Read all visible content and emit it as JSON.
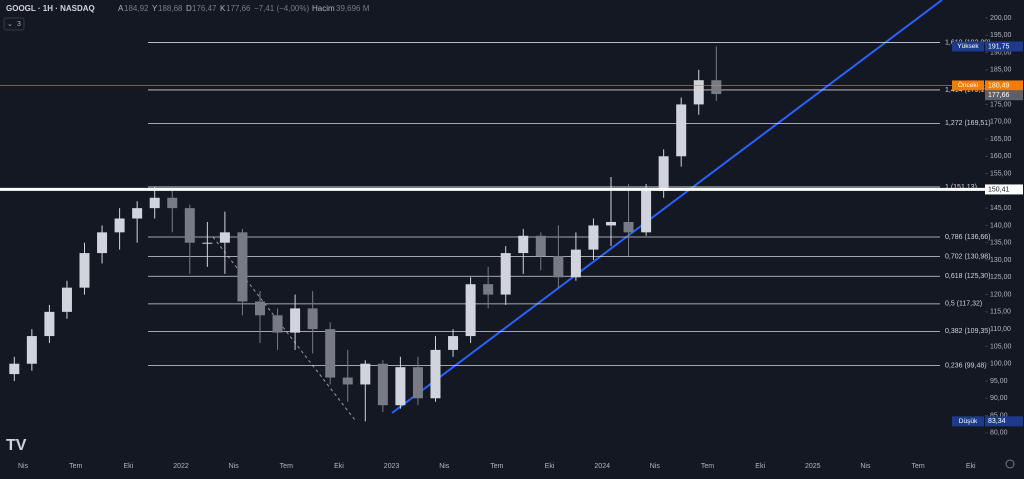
{
  "chart_data": {
    "type": "candlestick",
    "title": "GOOGL · 1H · NASDAQ",
    "ohlc_info": [
      {
        "key": "A",
        "text": "184,92"
      },
      {
        "key": "Y",
        "text": "188,68"
      },
      {
        "key": "D",
        "text": "176,47"
      },
      {
        "key": "K",
        "text": "177,66"
      }
    ],
    "change_text": "−7,41 (−4,00%)",
    "volume_key": "Hacim",
    "volume_text": "39,696 M",
    "indicator_count": "3",
    "x": [
      "2021-03",
      "2021-04",
      "2021-05",
      "2021-06",
      "2021-07",
      "2021-08",
      "2021-09",
      "2021-10",
      "2021-11",
      "2021-12",
      "2022-01",
      "2022-02",
      "2022-03",
      "2022-04",
      "2022-05",
      "2022-06",
      "2022-07",
      "2022-08",
      "2022-09",
      "2022-10",
      "2022-11",
      "2022-12",
      "2023-01",
      "2023-02",
      "2023-03",
      "2023-04",
      "2023-05",
      "2023-06",
      "2023-07",
      "2023-08",
      "2023-09",
      "2023-10",
      "2023-11",
      "2023-12",
      "2024-01",
      "2024-02",
      "2024-03",
      "2024-04",
      "2024-05",
      "2024-06",
      "2024-07"
    ],
    "open": [
      97,
      100,
      108,
      115,
      122,
      132,
      138,
      142,
      145,
      148,
      145,
      135,
      135,
      138,
      118,
      114,
      109,
      116,
      110,
      96,
      94,
      100,
      88,
      99,
      90,
      104,
      108,
      123,
      120,
      132,
      137,
      131,
      125,
      133,
      140,
      141,
      138,
      150,
      160,
      175,
      182
    ],
    "high": [
      102,
      110,
      117,
      124,
      135,
      140,
      145,
      147,
      151.13,
      150,
      146,
      141,
      144,
      139,
      121,
      116,
      120,
      121,
      112,
      104,
      101,
      101,
      102,
      102,
      108,
      110,
      125,
      128,
      134,
      139,
      138,
      140,
      138,
      142,
      154,
      152,
      152,
      162,
      177,
      185,
      191.75
    ],
    "low": [
      95,
      98,
      106,
      113,
      120,
      129,
      133,
      135,
      142,
      138,
      126,
      128,
      126,
      114,
      106,
      104,
      104,
      103,
      94,
      89,
      83.34,
      86,
      87,
      88,
      89,
      102,
      106,
      116,
      117,
      126,
      127,
      122,
      124,
      130,
      134,
      131,
      137,
      148,
      157,
      172,
      176
    ],
    "close": [
      100,
      108,
      115,
      122,
      132,
      138,
      142,
      145,
      148,
      145,
      135,
      135,
      138,
      118,
      114,
      109,
      116,
      110,
      96,
      94,
      100,
      88,
      99,
      90,
      104,
      108,
      123,
      120,
      132,
      137,
      131,
      125,
      133,
      140,
      141,
      138,
      150,
      160,
      175,
      182,
      178
    ],
    "up_color": "#d1d4dc",
    "down_color": "#787b86",
    "ylim": [
      73.6,
      205.2
    ],
    "yticks": [
      {
        "value": 80,
        "label": "80,00"
      },
      {
        "value": 85,
        "label": "85,00"
      },
      {
        "value": 90,
        "label": "90,00"
      },
      {
        "value": 95,
        "label": "95,00"
      },
      {
        "value": 100,
        "label": "100,00"
      },
      {
        "value": 105,
        "label": "105,00"
      },
      {
        "value": 110,
        "label": "110,00"
      },
      {
        "value": 115,
        "label": "115,00"
      },
      {
        "value": 120,
        "label": "120,00"
      },
      {
        "value": 125,
        "label": "125,00"
      },
      {
        "value": 130,
        "label": "130,00"
      },
      {
        "value": 135,
        "label": "135,00"
      },
      {
        "value": 140,
        "label": "140,00"
      },
      {
        "value": 145,
        "label": "145,00"
      },
      {
        "value": 150,
        "label": "150,00"
      },
      {
        "value": 155,
        "label": "155,00"
      },
      {
        "value": 160,
        "label": "160,00"
      },
      {
        "value": 165,
        "label": "165,00"
      },
      {
        "value": 170,
        "label": "170,00"
      },
      {
        "value": 175,
        "label": "175,00"
      },
      {
        "value": 180,
        "label": "180,00"
      },
      {
        "value": 185,
        "label": "185,00"
      },
      {
        "value": 190,
        "label": "190,00"
      },
      {
        "value": 195,
        "label": "195,00"
      },
      {
        "value": 200,
        "label": "200,00"
      }
    ],
    "xticks": [
      {
        "value": "2021-04",
        "label": "Nis"
      },
      {
        "value": "2021-07",
        "label": "Tem"
      },
      {
        "value": "2021-10",
        "label": "Eki"
      },
      {
        "value": "2022-01",
        "label": "2022"
      },
      {
        "value": "2022-04",
        "label": "Nis"
      },
      {
        "value": "2022-07",
        "label": "Tem"
      },
      {
        "value": "2022-10",
        "label": "Eki"
      },
      {
        "value": "2023-01",
        "label": "2023"
      },
      {
        "value": "2023-04",
        "label": "Nis"
      },
      {
        "value": "2023-07",
        "label": "Tem"
      },
      {
        "value": "2023-10",
        "label": "Eki"
      },
      {
        "value": "2024-01",
        "label": "2024"
      },
      {
        "value": "2024-04",
        "label": "Nis"
      },
      {
        "value": "2024-07",
        "label": "Tem"
      },
      {
        "value": "2024-10",
        "label": "Eki"
      },
      {
        "value": "2025-01",
        "label": "2025"
      },
      {
        "value": "2025-04",
        "label": "Nis"
      },
      {
        "value": "2025-07",
        "label": "Tem"
      },
      {
        "value": "2025-10",
        "label": "Eki"
      }
    ],
    "fib_levels": [
      {
        "label": "1,618 (192,89)",
        "value": 192.89
      },
      {
        "label": "1,414 (179,19)",
        "value": 179.19
      },
      {
        "label": "1,272 (169,51)",
        "value": 169.51
      },
      {
        "label": "1 (151,13)",
        "value": 151.13
      },
      {
        "label": "0,786 (136,66)",
        "value": 136.66
      },
      {
        "label": "0,702 (130,98)",
        "value": 130.98
      },
      {
        "label": "0,618 (125,30)",
        "value": 125.3
      },
      {
        "label": "0,5 (117,32)",
        "value": 117.32
      },
      {
        "label": "0,382 (109,35)",
        "value": 109.35
      },
      {
        "label": "0,236 (99,48)",
        "value": 99.48
      }
    ],
    "price_markers": [
      {
        "name": "Yüksek",
        "value": 191.75,
        "value_label": "191,75",
        "color": "#1e3a8a"
      },
      {
        "name": "Önceki",
        "value": 180.49,
        "value_label": "180,49",
        "color": "#f57c00"
      },
      {
        "value": 177.66,
        "value_label": "177,66",
        "color": "#5d606b"
      },
      {
        "value": 150.41,
        "value_label": "150,41",
        "color": "#ffffff"
      },
      {
        "name": "Düşük",
        "value": 83.34,
        "value_label": "83,34",
        "color": "#1e3a8a"
      }
    ]
  }
}
